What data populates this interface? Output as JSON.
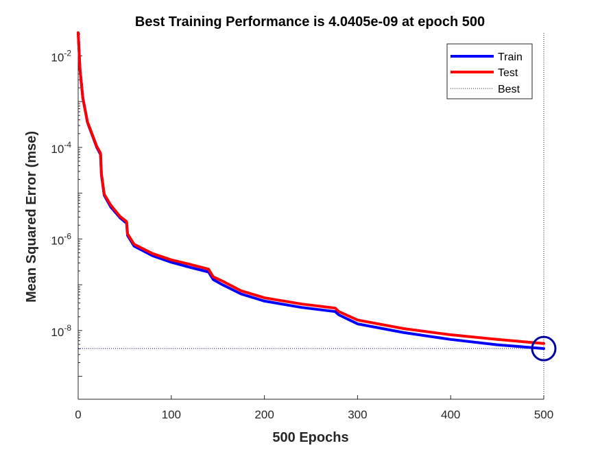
{
  "chart_data": {
    "type": "line",
    "title": "Best Training Performance is 4.0405e-09 at epoch 500",
    "xlabel": "500 Epochs",
    "ylabel": "Mean Squared Error  (mse)",
    "xlim": [
      0,
      500
    ],
    "ylim_log10": [
      -9.5,
      -1.5
    ],
    "yscale": "log",
    "x_ticks": [
      "0",
      "100",
      "200",
      "300",
      "400",
      "500"
    ],
    "y_ticks": [
      {
        "base": "10",
        "exp": "-2"
      },
      {
        "base": "10",
        "exp": "-4"
      },
      {
        "base": "10",
        "exp": "-6"
      },
      {
        "base": "10",
        "exp": "-8"
      }
    ],
    "legend": {
      "position": "top-right",
      "entries": [
        "Train",
        "Test",
        "Best"
      ]
    },
    "colors": {
      "train": "#0000ff",
      "test": "#ff0000",
      "best": "#0000a0",
      "axis": "#262626"
    },
    "series": [
      {
        "name": "Train",
        "x": [
          0,
          2,
          5,
          10,
          20,
          24,
          25,
          28,
          35,
          45,
          52,
          53,
          60,
          80,
          100,
          120,
          140,
          145,
          155,
          175,
          200,
          240,
          276,
          280,
          300,
          350,
          400,
          450,
          500
        ],
        "y": [
          0.032,
          0.005,
          0.0012,
          0.00035,
          0.0001,
          7e-05,
          2.5e-05,
          9e-06,
          5e-06,
          2.9e-06,
          2.2e-06,
          1.2e-06,
          7e-07,
          4.3e-07,
          3.1e-07,
          2.4e-07,
          1.9e-07,
          1.3e-07,
          1e-07,
          6.3e-08,
          4.4e-08,
          3.2e-08,
          2.6e-08,
          2.2e-08,
          1.4e-08,
          9e-09,
          6.4e-09,
          4.9e-09,
          4.0405e-09
        ]
      },
      {
        "name": "Test",
        "x": [
          0,
          2,
          5,
          10,
          20,
          24,
          25,
          28,
          35,
          45,
          52,
          53,
          60,
          80,
          100,
          120,
          140,
          145,
          155,
          175,
          200,
          240,
          276,
          280,
          300,
          350,
          400,
          450,
          500
        ],
        "y": [
          0.032,
          0.005,
          0.0012,
          0.00036,
          0.000105,
          7.5e-05,
          2.7e-05,
          9.5e-06,
          5.5e-06,
          3.1e-06,
          2.4e-06,
          1.3e-06,
          7.7e-07,
          4.8e-07,
          3.5e-07,
          2.8e-07,
          2.2e-07,
          1.5e-07,
          1.2e-07,
          7.4e-08,
          5.2e-08,
          3.8e-08,
          3.1e-08,
          2.6e-08,
          1.7e-08,
          1.1e-08,
          8.1e-09,
          6.4e-09,
          5.2e-09
        ]
      },
      {
        "name": "Best",
        "x": [
          0,
          500
        ],
        "y": [
          4.0405e-09,
          4.0405e-09
        ],
        "vline_x": 500
      }
    ],
    "best_point": {
      "epoch": 500,
      "value": 4.0405e-09
    }
  }
}
